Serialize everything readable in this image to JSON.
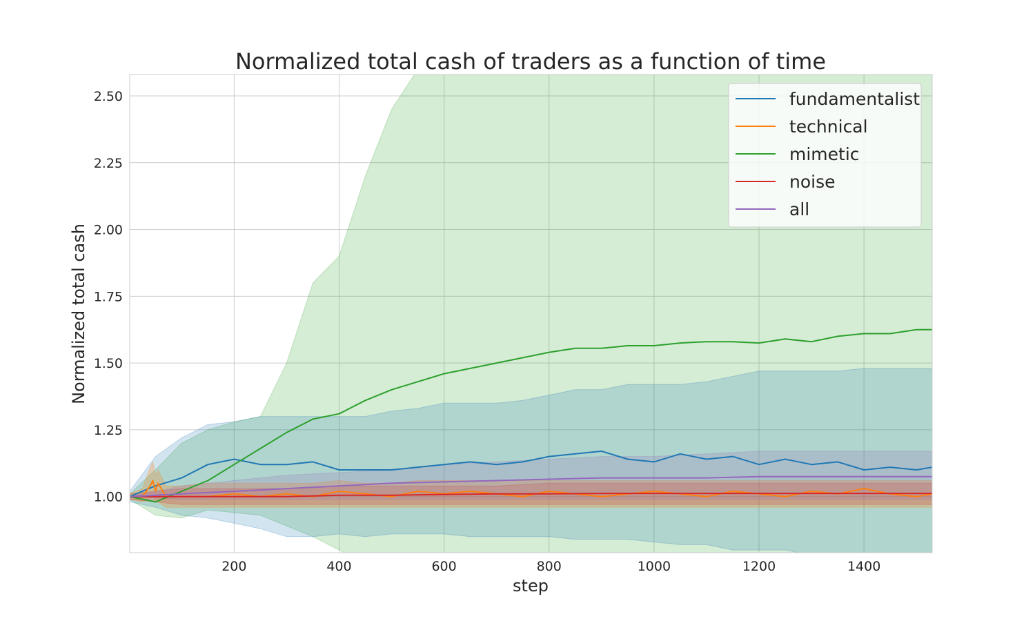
{
  "chart_data": {
    "type": "line",
    "title": "Normalized total cash of traders as a function of time",
    "xlabel": "step",
    "ylabel": "Normalized total cash",
    "xlim": [
      1,
      1530
    ],
    "ylim": [
      0.79,
      2.58
    ],
    "xticks": [
      200,
      400,
      600,
      800,
      1000,
      1200,
      1400
    ],
    "xtick_labels": [
      "200",
      "400",
      "600",
      "800",
      "1000",
      "1200",
      "1400"
    ],
    "yticks": [
      0.75,
      1.0,
      1.25,
      1.5,
      1.75,
      2.0,
      2.25,
      2.5
    ],
    "ytick_labels": [
      "0.75",
      "1.00",
      "1.25",
      "1.50",
      "1.75",
      "2.00",
      "2.25",
      "2.50"
    ],
    "grid": true,
    "legend_position": "top-right",
    "series": [
      {
        "name": "fundamentalist",
        "color": "#1f77b4",
        "x": [
          1,
          50,
          100,
          150,
          200,
          250,
          300,
          350,
          400,
          450,
          500,
          550,
          600,
          650,
          700,
          750,
          800,
          850,
          900,
          950,
          1000,
          1050,
          1100,
          1150,
          1200,
          1250,
          1300,
          1350,
          1400,
          1450,
          1500,
          1530
        ],
        "values": [
          1.0,
          1.04,
          1.07,
          1.12,
          1.14,
          1.12,
          1.12,
          1.13,
          1.1,
          1.1,
          1.1,
          1.11,
          1.12,
          1.13,
          1.12,
          1.13,
          1.15,
          1.16,
          1.17,
          1.14,
          1.13,
          1.16,
          1.14,
          1.15,
          1.12,
          1.14,
          1.12,
          1.13,
          1.1,
          1.11,
          1.1,
          1.11
        ],
        "band_low": [
          0.98,
          0.96,
          0.93,
          0.92,
          0.9,
          0.88,
          0.85,
          0.85,
          0.86,
          0.85,
          0.86,
          0.86,
          0.86,
          0.85,
          0.85,
          0.85,
          0.85,
          0.84,
          0.84,
          0.84,
          0.83,
          0.82,
          0.82,
          0.8,
          0.8,
          0.8,
          0.78,
          0.77,
          0.75,
          0.75,
          0.74,
          0.74
        ],
        "band_high": [
          1.02,
          1.15,
          1.22,
          1.27,
          1.28,
          1.3,
          1.3,
          1.3,
          1.3,
          1.3,
          1.32,
          1.33,
          1.35,
          1.35,
          1.35,
          1.36,
          1.38,
          1.4,
          1.4,
          1.42,
          1.42,
          1.42,
          1.43,
          1.45,
          1.47,
          1.47,
          1.47,
          1.47,
          1.48,
          1.48,
          1.48,
          1.48
        ]
      },
      {
        "name": "technical",
        "color": "#ff7f0e",
        "x": [
          1,
          25,
          40,
          45,
          50,
          55,
          70,
          100,
          150,
          200,
          250,
          300,
          350,
          400,
          450,
          500,
          550,
          600,
          650,
          700,
          750,
          800,
          850,
          900,
          950,
          1000,
          1050,
          1100,
          1150,
          1200,
          1250,
          1300,
          1350,
          1400,
          1450,
          1500,
          1530
        ],
        "values": [
          1.0,
          1.0,
          1.04,
          1.06,
          1.02,
          1.05,
          1.0,
          1.0,
          1.0,
          1.01,
          1.0,
          1.01,
          1.0,
          1.02,
          1.01,
          1.0,
          1.02,
          1.01,
          1.02,
          1.01,
          1.0,
          1.02,
          1.01,
          1.0,
          1.01,
          1.02,
          1.01,
          1.0,
          1.02,
          1.01,
          1.0,
          1.02,
          1.01,
          1.03,
          1.01,
          1.0,
          1.01
        ],
        "band_low": [
          0.99,
          0.98,
          0.99,
          1.0,
          0.98,
          0.98,
          0.96,
          0.96,
          0.96,
          0.96,
          0.96,
          0.96,
          0.96,
          0.96,
          0.96,
          0.96,
          0.96,
          0.96,
          0.96,
          0.96,
          0.96,
          0.96,
          0.96,
          0.96,
          0.96,
          0.96,
          0.96,
          0.96,
          0.96,
          0.96,
          0.96,
          0.96,
          0.96,
          0.96,
          0.96,
          0.96,
          0.96
        ],
        "band_high": [
          1.01,
          1.03,
          1.11,
          1.13,
          1.08,
          1.1,
          1.04,
          1.04,
          1.05,
          1.05,
          1.05,
          1.05,
          1.05,
          1.06,
          1.05,
          1.05,
          1.06,
          1.06,
          1.06,
          1.06,
          1.06,
          1.06,
          1.06,
          1.06,
          1.06,
          1.06,
          1.06,
          1.06,
          1.06,
          1.06,
          1.06,
          1.06,
          1.06,
          1.06,
          1.06,
          1.06,
          1.06
        ]
      },
      {
        "name": "mimetic",
        "color": "#2ca02c",
        "x": [
          1,
          50,
          100,
          150,
          200,
          250,
          300,
          350,
          400,
          450,
          500,
          550,
          600,
          650,
          700,
          750,
          800,
          850,
          900,
          950,
          1000,
          1050,
          1100,
          1150,
          1200,
          1250,
          1300,
          1350,
          1400,
          1450,
          1500,
          1530
        ],
        "values": [
          1.0,
          0.98,
          1.02,
          1.06,
          1.12,
          1.18,
          1.24,
          1.29,
          1.31,
          1.36,
          1.4,
          1.43,
          1.46,
          1.48,
          1.5,
          1.52,
          1.54,
          1.555,
          1.555,
          1.565,
          1.565,
          1.575,
          1.58,
          1.58,
          1.575,
          1.59,
          1.58,
          1.6,
          1.61,
          1.61,
          1.625,
          1.625
        ],
        "band_low": [
          0.99,
          0.93,
          0.92,
          0.95,
          0.94,
          0.93,
          0.89,
          0.85,
          0.8,
          0.75,
          0.72,
          0.68,
          0.66,
          0.67,
          0.69,
          0.71,
          0.72,
          0.73,
          0.74,
          0.74,
          0.75,
          0.75,
          0.75,
          0.75,
          0.75,
          0.75,
          0.75,
          0.75,
          0.74,
          0.75,
          0.76,
          0.77
        ],
        "band_high": [
          1.01,
          1.1,
          1.2,
          1.25,
          1.28,
          1.3,
          1.5,
          1.8,
          1.9,
          2.2,
          2.45,
          2.6,
          2.65,
          2.65,
          2.7,
          2.75,
          2.8,
          2.8,
          2.8,
          2.8,
          2.8,
          2.8,
          2.82,
          2.82,
          2.85,
          2.85,
          2.85,
          2.85,
          2.85,
          2.85,
          2.86,
          2.86
        ]
      },
      {
        "name": "noise",
        "color": "#d62728",
        "x": [
          1,
          100,
          200,
          300,
          400,
          500,
          600,
          700,
          800,
          900,
          1000,
          1100,
          1200,
          1300,
          1400,
          1500,
          1530
        ],
        "values": [
          1.0,
          1.0,
          1.0,
          1.0,
          1.005,
          1.005,
          1.008,
          1.01,
          1.01,
          1.012,
          1.012,
          1.012,
          1.012,
          1.012,
          1.012,
          1.012,
          1.012
        ],
        "band_low": [
          0.99,
          0.97,
          0.97,
          0.97,
          0.97,
          0.97,
          0.97,
          0.97,
          0.97,
          0.97,
          0.97,
          0.97,
          0.97,
          0.97,
          0.97,
          0.97,
          0.97
        ],
        "band_high": [
          1.01,
          1.03,
          1.03,
          1.03,
          1.04,
          1.04,
          1.04,
          1.04,
          1.05,
          1.05,
          1.05,
          1.05,
          1.05,
          1.05,
          1.05,
          1.05,
          1.05
        ]
      },
      {
        "name": "all",
        "color": "#9467bd",
        "x": [
          1,
          100,
          200,
          300,
          400,
          500,
          600,
          700,
          800,
          900,
          1000,
          1100,
          1200,
          1300,
          1400,
          1500,
          1530
        ],
        "values": [
          1.0,
          1.01,
          1.02,
          1.03,
          1.04,
          1.05,
          1.055,
          1.06,
          1.065,
          1.07,
          1.07,
          1.07,
          1.075,
          1.075,
          1.075,
          1.075,
          1.075
        ],
        "band_low": [
          1.0,
          0.99,
          0.99,
          0.99,
          0.99,
          0.99,
          0.99,
          0.99,
          0.99,
          0.99,
          0.99,
          0.99,
          0.99,
          0.99,
          0.99,
          0.99,
          0.99
        ],
        "band_high": [
          1.0,
          1.04,
          1.06,
          1.08,
          1.09,
          1.1,
          1.12,
          1.13,
          1.14,
          1.15,
          1.15,
          1.16,
          1.17,
          1.17,
          1.17,
          1.17,
          1.17
        ]
      }
    ]
  }
}
